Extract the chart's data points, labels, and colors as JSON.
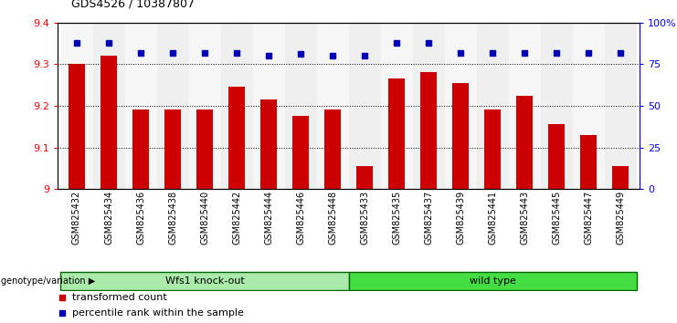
{
  "title": "GDS4526 / 10387807",
  "samples": [
    "GSM825432",
    "GSM825434",
    "GSM825436",
    "GSM825438",
    "GSM825440",
    "GSM825442",
    "GSM825444",
    "GSM825446",
    "GSM825448",
    "GSM825433",
    "GSM825435",
    "GSM825437",
    "GSM825439",
    "GSM825441",
    "GSM825443",
    "GSM825445",
    "GSM825447",
    "GSM825449"
  ],
  "bar_values": [
    9.3,
    9.32,
    9.19,
    9.19,
    9.19,
    9.245,
    9.215,
    9.175,
    9.19,
    9.055,
    9.265,
    9.28,
    9.255,
    9.19,
    9.225,
    9.155,
    9.13,
    9.055
  ],
  "percentile_values": [
    88,
    88,
    82,
    82,
    82,
    82,
    80,
    81,
    80,
    80,
    88,
    88,
    82,
    82,
    82,
    82,
    82,
    82
  ],
  "groups": [
    {
      "label": "Wfs1 knock-out",
      "count": 9,
      "color": "#aaeaaa"
    },
    {
      "label": "wild type",
      "count": 9,
      "color": "#44dd44"
    }
  ],
  "ylim": [
    9.0,
    9.4
  ],
  "bar_color": "#cc0000",
  "dot_color": "#0000bb",
  "plot_bg": "#ffffff",
  "group_label": "genotype/variation"
}
